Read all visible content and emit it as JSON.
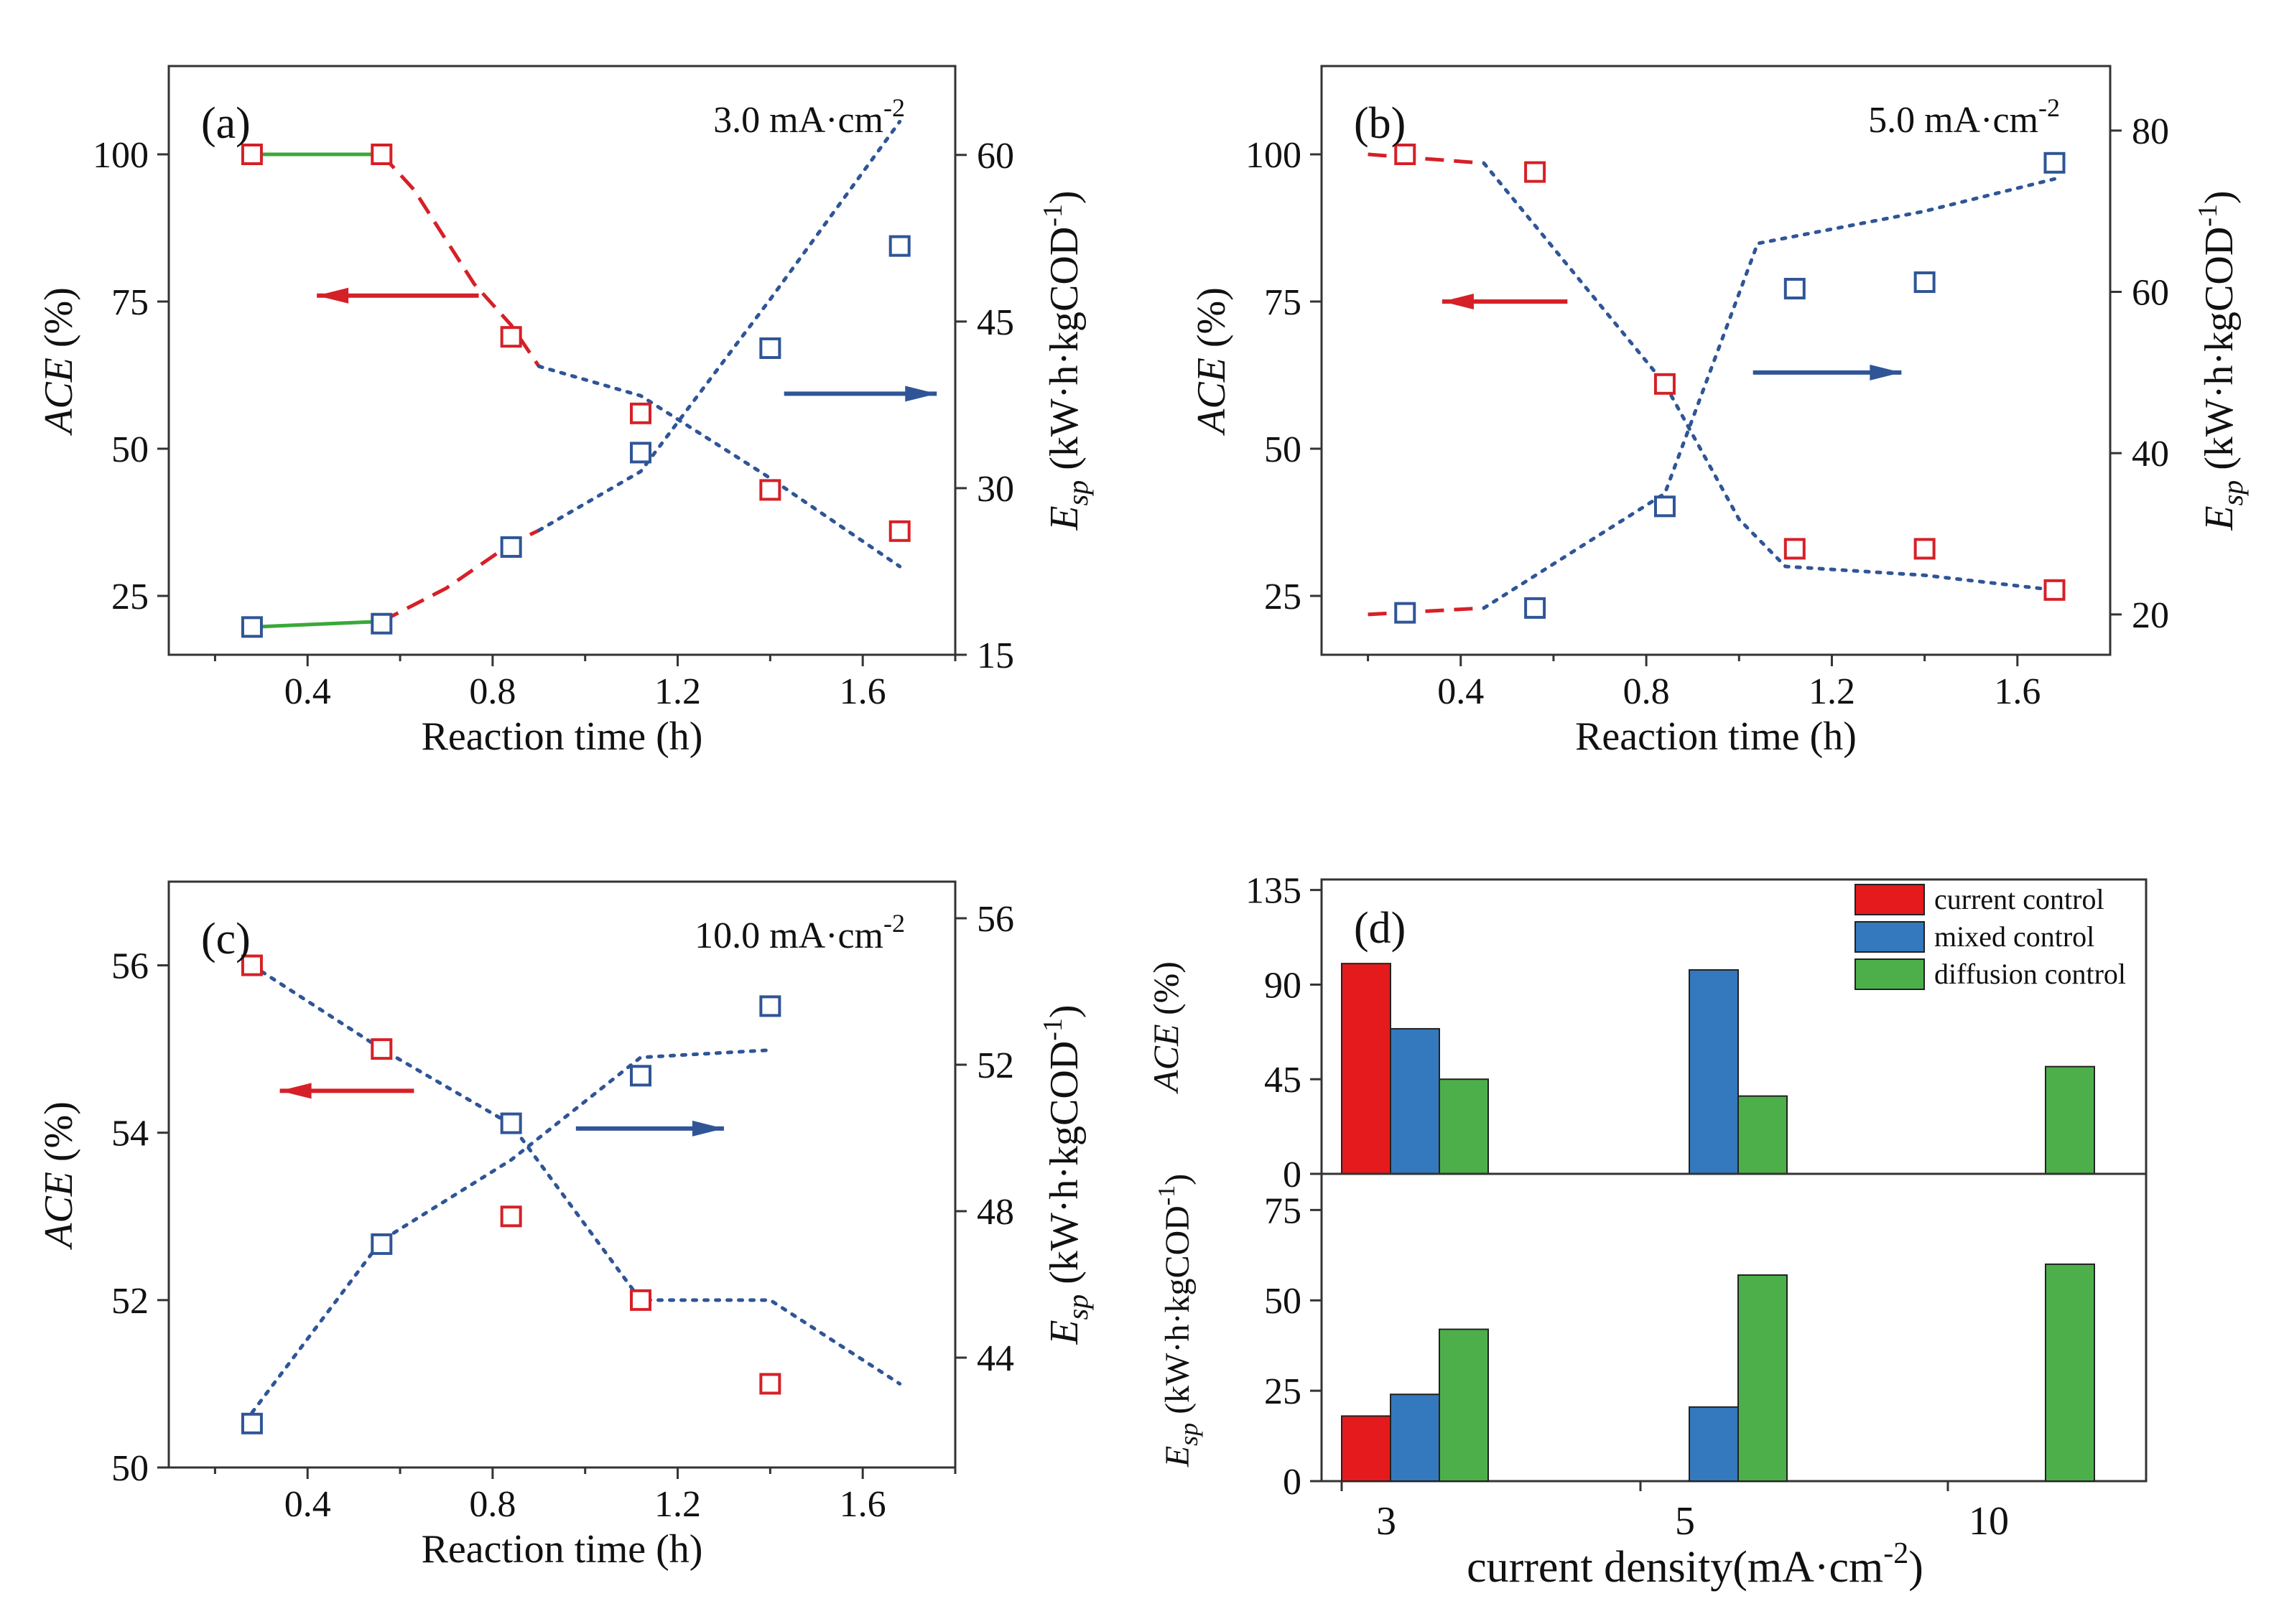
{
  "colors": {
    "red": "#d62027",
    "blue": "#2f5597",
    "green": "#3aa83a",
    "bar_red": "#e41a1c",
    "bar_blue": "#3478bd",
    "bar_green": "#4daf4a",
    "axis": "#333333"
  },
  "chart_data": [
    {
      "id": "a",
      "type": "line",
      "panel_label": "(a)",
      "annotation": "3.0 mA·cm",
      "annotation_sup": "-2",
      "xlabel": "Reaction time (h)",
      "ylabel": "ACE (%)",
      "ylabel_italic": "ACE",
      "ylabel_rest": " (%)",
      "y2label_symbol": "E",
      "y2label_sub": "sp",
      "y2label_unit": " (kW·h·kgCOD",
      "y2label_sup": "-1",
      "y2label_close": ")",
      "xlim": [
        0.1,
        1.8
      ],
      "ylim": [
        15,
        115
      ],
      "y2lim": [
        15,
        68
      ],
      "xticks": [
        "0.4",
        "0.8",
        "1.2",
        "1.6"
      ],
      "yticks": [
        "25",
        "50",
        "75",
        "100"
      ],
      "y2ticks": [
        "15",
        "30",
        "45",
        "60"
      ],
      "series": [
        {
          "name": "ACE",
          "axis": "left",
          "color_key": "red",
          "x": [
            0.28,
            0.56,
            0.84,
            1.12,
            1.4,
            1.68
          ],
          "y": [
            100,
            100,
            69,
            56,
            43,
            36
          ]
        },
        {
          "name": "Esp",
          "axis": "right",
          "color_key": "blue",
          "x": [
            0.28,
            0.56,
            0.84,
            1.12,
            1.4,
            1.68
          ],
          "y": [
            17.5,
            17.8,
            24.7,
            33.2,
            42.6,
            51.8
          ]
        }
      ],
      "fit_lines": [
        {
          "axis": "left",
          "style": "solid",
          "color_key": "green",
          "points": [
            [
              0.28,
              100
            ],
            [
              0.56,
              100
            ]
          ]
        },
        {
          "axis": "left",
          "style": "dash",
          "color_key": "red",
          "points": [
            [
              0.56,
              100
            ],
            [
              0.63,
              94
            ],
            [
              0.76,
              78
            ],
            [
              0.84,
              71
            ],
            [
              0.9,
              64
            ]
          ]
        },
        {
          "axis": "left",
          "style": "dot",
          "color_key": "blue",
          "points": [
            [
              0.9,
              64
            ],
            [
              1.12,
              59
            ],
            [
              1.4,
              45
            ],
            [
              1.68,
              30
            ]
          ]
        },
        {
          "axis": "right",
          "style": "solid",
          "color_key": "green",
          "points": [
            [
              0.28,
              17.5
            ],
            [
              0.56,
              18
            ]
          ]
        },
        {
          "axis": "right",
          "style": "dash",
          "color_key": "red",
          "points": [
            [
              0.56,
              18
            ],
            [
              0.7,
              21
            ],
            [
              0.84,
              25
            ],
            [
              0.9,
              26.2
            ]
          ]
        },
        {
          "axis": "right",
          "style": "dot",
          "color_key": "blue",
          "points": [
            [
              0.9,
              26.2
            ],
            [
              1.12,
              31.5
            ],
            [
              1.4,
              47
            ],
            [
              1.68,
              63
            ]
          ]
        }
      ],
      "arrows": [
        {
          "color_key": "red",
          "from": [
            0.77,
            76
          ],
          "to": [
            0.42,
            76
          ]
        },
        {
          "color_key": "blue",
          "from": [
            1.43,
            38.5
          ],
          "to": [
            1.76,
            38.5
          ],
          "axis": "right"
        }
      ]
    },
    {
      "id": "b",
      "type": "line",
      "panel_label": "(b)",
      "annotation": "5.0 mA·cm",
      "annotation_sup": "-2",
      "xlabel": "Reaction time (h)",
      "ylabel": "ACE (%)",
      "ylabel_italic": "ACE",
      "ylabel_rest": " (%)",
      "y2label_symbol": "E",
      "y2label_sub": "sp",
      "y2label_unit": " (kW·h·kgCOD",
      "y2label_sup": "-1",
      "y2label_close": ")",
      "xlim": [
        0.1,
        1.8
      ],
      "ylim": [
        15,
        115
      ],
      "y2lim": [
        15,
        88
      ],
      "xticks": [
        "0.4",
        "0.8",
        "1.2",
        "1.6"
      ],
      "yticks": [
        "25",
        "50",
        "75",
        "100"
      ],
      "y2ticks": [
        "20",
        "40",
        "60",
        "80"
      ],
      "series": [
        {
          "name": "ACE",
          "axis": "left",
          "color_key": "red",
          "x": [
            0.28,
            0.56,
            0.84,
            1.12,
            1.4,
            1.68
          ],
          "y": [
            100,
            97,
            61,
            33,
            33,
            26
          ]
        },
        {
          "name": "Esp",
          "axis": "right",
          "color_key": "blue",
          "x": [
            0.28,
            0.56,
            0.84,
            1.12,
            1.4,
            1.68
          ],
          "y": [
            20.2,
            20.8,
            33.4,
            60.4,
            61.2,
            76.0
          ]
        }
      ],
      "fit_lines": [
        {
          "axis": "left",
          "style": "dash",
          "color_key": "red",
          "points": [
            [
              0.2,
              100
            ],
            [
              0.45,
              98.5
            ]
          ]
        },
        {
          "axis": "left",
          "style": "dot",
          "color_key": "blue",
          "points": [
            [
              0.45,
              98.5
            ],
            [
              0.84,
              61
            ],
            [
              1.0,
              38
            ],
            [
              1.1,
              30
            ],
            [
              1.4,
              28.5
            ],
            [
              1.68,
              26
            ]
          ]
        },
        {
          "axis": "right",
          "style": "dash",
          "color_key": "red",
          "points": [
            [
              0.2,
              20
            ],
            [
              0.45,
              20.8
            ]
          ]
        },
        {
          "axis": "right",
          "style": "dot",
          "color_key": "blue",
          "points": [
            [
              0.45,
              20.8
            ],
            [
              0.84,
              35
            ],
            [
              1.04,
              66
            ],
            [
              1.4,
              70
            ],
            [
              1.68,
              74
            ]
          ]
        }
      ],
      "arrows": [
        {
          "color_key": "red",
          "from": [
            0.63,
            75
          ],
          "to": [
            0.36,
            75
          ]
        },
        {
          "color_key": "blue",
          "from": [
            1.03,
            50
          ],
          "to": [
            1.35,
            50
          ],
          "axis": "right"
        }
      ]
    },
    {
      "id": "c",
      "type": "line",
      "panel_label": "(c)",
      "annotation": "10.0 mA·cm",
      "annotation_sup": "-2",
      "xlabel": "Reaction time (h)",
      "ylabel": "ACE (%)",
      "ylabel_italic": "ACE",
      "ylabel_rest": " (%)",
      "y2label_symbol": "E",
      "y2label_sub": "sp",
      "y2label_unit": " (kW·h·kgCOD",
      "y2label_sup": "-1",
      "y2label_close": ")",
      "xlim": [
        0.1,
        1.8
      ],
      "ylim": [
        50,
        57
      ],
      "y2lim": [
        41,
        57
      ],
      "xticks": [
        "0.4",
        "0.8",
        "1.2",
        "1.6"
      ],
      "yticks": [
        "50",
        "52",
        "54",
        "56"
      ],
      "y2ticks": [
        "44",
        "48",
        "52",
        "56"
      ],
      "series": [
        {
          "name": "ACE",
          "axis": "left",
          "color_key": "red",
          "x": [
            0.28,
            0.56,
            0.84,
            1.12,
            1.4
          ],
          "y": [
            56.0,
            55.0,
            53.0,
            52.0,
            51.0
          ]
        },
        {
          "name": "Esp",
          "axis": "right",
          "color_key": "blue",
          "x": [
            0.28,
            0.56,
            0.84,
            1.12,
            1.4
          ],
          "y": [
            42.2,
            47.1,
            50.4,
            51.7,
            53.6
          ]
        }
      ],
      "fit_lines": [
        {
          "axis": "left",
          "style": "dot",
          "color_key": "blue",
          "points": [
            [
              0.28,
              56.0
            ],
            [
              0.56,
              55.0
            ],
            [
              0.84,
              54.1
            ],
            [
              1.12,
              52.0
            ],
            [
              1.4,
              52.0
            ],
            [
              1.68,
              51.0
            ]
          ]
        },
        {
          "axis": "right",
          "style": "dot",
          "color_key": "blue",
          "points": [
            [
              0.28,
              42.5
            ],
            [
              0.56,
              47.2
            ],
            [
              0.84,
              49.4
            ],
            [
              1.12,
              52.2
            ],
            [
              1.4,
              52.4
            ]
          ]
        }
      ],
      "arrows": [
        {
          "color_key": "red",
          "from": [
            0.63,
            54.5
          ],
          "to": [
            0.34,
            54.5
          ]
        },
        {
          "color_key": "blue",
          "from": [
            0.98,
            54.05
          ],
          "to": [
            1.3,
            54.05
          ]
        }
      ]
    },
    {
      "id": "d",
      "type": "bar",
      "panel_label": "(d)",
      "categories": [
        "3",
        "5",
        "10"
      ],
      "xlabel": "current density(mA·cm",
      "xlabel_sup": "-2",
      "xlabel_close": ")",
      "legend": {
        "position": "top-right",
        "entries": [
          "current control",
          "mixed control",
          "diffusion control"
        ]
      },
      "top": {
        "ylabel": "ACE (%)",
        "ylabel_italic": "ACE",
        "ylabel_rest": " (%)",
        "ylim": [
          0,
          140
        ],
        "yticks": [
          "0",
          "45",
          "90",
          "135"
        ],
        "series": [
          {
            "name": "current control",
            "color_key": "bar_red",
            "values": [
              100,
              null,
              null
            ]
          },
          {
            "name": "mixed control",
            "color_key": "bar_blue",
            "values": [
              69,
              97,
              null
            ]
          },
          {
            "name": "diffusion control",
            "color_key": "bar_green",
            "values": [
              45,
              37,
              51
            ]
          }
        ]
      },
      "bottom": {
        "ylabel_symbol": "E",
        "ylabel_sub": "sp",
        "ylabel_unit": " (kW·h·kgCOD",
        "ylabel_sup": "-1",
        "ylabel_close": ")",
        "ylim": [
          0,
          85
        ],
        "yticks": [
          "0",
          "25",
          "50",
          "75"
        ],
        "series": [
          {
            "name": "current control",
            "color_key": "bar_red",
            "values": [
              18,
              null,
              null
            ]
          },
          {
            "name": "mixed control",
            "color_key": "bar_blue",
            "values": [
              24,
              20.5,
              null
            ]
          },
          {
            "name": "diffusion control",
            "color_key": "bar_green",
            "values": [
              42,
              57,
              60
            ]
          }
        ]
      }
    }
  ]
}
